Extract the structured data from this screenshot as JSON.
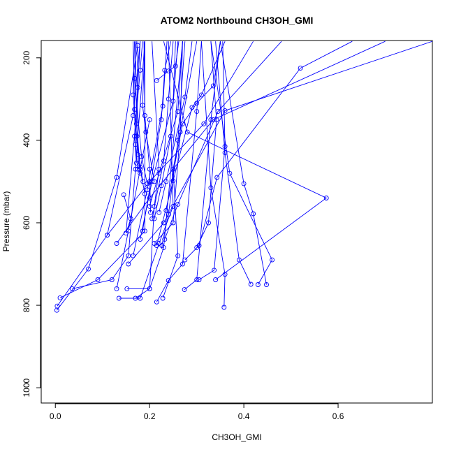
{
  "chart_data": {
    "type": "line",
    "title": "ATOM2 Northbound CH3OH_GMI",
    "xlabel": "CH3OH_GMI",
    "ylabel": "Pressure (mbar)",
    "xlim": [
      -0.03,
      0.8
    ],
    "ylim": [
      1037,
      158
    ],
    "y_reversed": true,
    "xticks": [
      "0.0",
      "0.2",
      "0.4",
      "0.6"
    ],
    "xtick_values": [
      0.0,
      0.2,
      0.4,
      0.6
    ],
    "yticks": [
      "200",
      "400",
      "600",
      "800",
      "1000"
    ],
    "ytick_values": [
      200,
      400,
      600,
      800,
      1000
    ],
    "grid": false,
    "legend": "none",
    "series_color": "#0000ff",
    "marker": "open-circle",
    "series": [
      {
        "x": [
          0.004,
          0.11,
          0.165,
          0.18
        ],
        "y": [
          802,
          630,
          340,
          160
        ]
      },
      {
        "x": [
          0.003,
          0.07,
          0.13,
          0.175
        ],
        "y": [
          812,
          712,
          490,
          170
        ]
      },
      {
        "x": [
          0.01,
          0.09,
          0.19,
          0.19
        ],
        "y": [
          782,
          738,
          620,
          160
        ]
      },
      {
        "x": [
          0.036,
          0.12,
          0.155,
          0.17,
          0.19
        ],
        "y": [
          760,
          738,
          680,
          470,
          160
        ]
      },
      {
        "x": [
          0.145,
          0.16,
          0.15,
          0.18,
          0.185
        ],
        "y": [
          532,
          590,
          625,
          230,
          160
        ]
      },
      {
        "x": [
          0.13,
          0.155,
          0.2
        ],
        "y": [
          760,
          620,
          350
        ]
      },
      {
        "x": [
          0.135,
          0.18,
          0.22,
          0.25,
          0.24
        ],
        "y": [
          783,
          783,
          650,
          560,
          160
        ]
      },
      {
        "x": [
          0.17,
          0.2,
          0.21,
          0.22,
          0.205
        ],
        "y": [
          783,
          760,
          560,
          470,
          160
        ]
      },
      {
        "x": [
          0.152,
          0.2,
          0.23,
          0.27
        ],
        "y": [
          760,
          760,
          660,
          160
        ]
      },
      {
        "x": [
          0.215,
          0.24,
          0.27,
          0.3,
          0.31
        ],
        "y": [
          792,
          740,
          700,
          330,
          160
        ]
      },
      {
        "x": [
          0.228,
          0.26,
          0.25,
          0.3
        ],
        "y": [
          783,
          680,
          470,
          160
        ]
      },
      {
        "x": [
          0.274,
          0.3,
          0.33,
          0.35
        ],
        "y": [
          762,
          738,
          350,
          160
        ]
      },
      {
        "x": [
          0.358,
          0.36,
          0.33,
          0.31
        ],
        "y": [
          805,
          725,
          515,
          160
        ]
      },
      {
        "x": [
          0.305,
          0.337,
          0.36,
          0.355
        ],
        "y": [
          738,
          715,
          415,
          160
        ]
      },
      {
        "x": [
          0.415,
          0.39,
          0.36,
          0.34
        ],
        "y": [
          749,
          690,
          430,
          160
        ]
      },
      {
        "x": [
          0.448,
          0.42,
          0.4,
          0.35
        ],
        "y": [
          750,
          578,
          505,
          160
        ]
      },
      {
        "x": [
          0.43,
          0.46,
          0.37,
          0.33
        ],
        "y": [
          750,
          690,
          480,
          160
        ]
      },
      {
        "x": [
          0.34,
          0.575,
          0.28,
          0.23
        ],
        "y": [
          738,
          540,
          380,
          160
        ]
      },
      {
        "x": [
          0.3,
          0.325,
          0.342,
          0.33
        ],
        "y": [
          660,
          600,
          350,
          160
        ]
      },
      {
        "x": [
          0.275,
          0.305,
          0.343,
          0.52,
          0.63
        ],
        "y": [
          690,
          655,
          490,
          225,
          160
        ]
      },
      {
        "x": [
          0.232,
          0.26,
          0.345,
          0.48
        ],
        "y": [
          640,
          555,
          330,
          160
        ]
      },
      {
        "x": [
          0.155,
          0.23,
          0.36,
          0.8
        ],
        "y": [
          700,
          600,
          328,
          160
        ]
      },
      {
        "x": [
          0.13,
          0.2,
          0.335,
          0.7
        ],
        "y": [
          650,
          540,
          350,
          160
        ]
      },
      {
        "x": [
          0.11,
          0.2,
          0.315,
          0.42
        ],
        "y": [
          630,
          500,
          360,
          160
        ]
      },
      {
        "x": [
          0.215,
          0.25,
          0.29,
          0.31,
          0.36
        ],
        "y": [
          655,
          498,
          320,
          290,
          160
        ]
      },
      {
        "x": [
          0.235,
          0.27,
          0.3,
          0.335,
          0.35
        ],
        "y": [
          570,
          360,
          310,
          268,
          160
        ]
      },
      {
        "x": [
          0.2,
          0.22,
          0.26,
          0.27
        ],
        "y": [
          560,
          480,
          330,
          160
        ]
      },
      {
        "x": [
          0.22,
          0.235,
          0.275,
          0.29
        ],
        "y": [
          575,
          500,
          295,
          160
        ]
      },
      {
        "x": [
          0.21,
          0.225,
          0.245,
          0.26
        ],
        "y": [
          590,
          510,
          390,
          160
        ]
      },
      {
        "x": [
          0.205,
          0.23,
          0.24,
          0.25
        ],
        "y": [
          590,
          450,
          300,
          160
        ]
      },
      {
        "x": [
          0.185,
          0.225,
          0.232,
          0.245
        ],
        "y": [
          620,
          350,
          230,
          160
        ]
      },
      {
        "x": [
          0.165,
          0.195,
          0.228,
          0.237
        ],
        "y": [
          680,
          520,
          317,
          160
        ]
      },
      {
        "x": [
          0.18,
          0.205,
          0.25,
          0.255
        ],
        "y": [
          640,
          500,
          305,
          160
        ]
      },
      {
        "x": [
          0.21,
          0.25,
          0.265,
          0.27
        ],
        "y": [
          650,
          600,
          380,
          160
        ]
      },
      {
        "x": [
          0.226,
          0.24,
          0.26,
          0.275
        ],
        "y": [
          655,
          580,
          400,
          160
        ]
      },
      {
        "x": [
          0.202,
          0.2,
          0.19,
          0.188
        ],
        "y": [
          575,
          470,
          340,
          160
        ]
      },
      {
        "x": [
          0.19,
          0.18,
          0.173,
          0.175
        ],
        "y": [
          530,
          470,
          390,
          160
        ]
      },
      {
        "x": [
          0.195,
          0.183,
          0.168,
          0.172
        ],
        "y": [
          505,
          440,
          250,
          160
        ]
      },
      {
        "x": [
          0.18,
          0.175,
          0.165,
          0.168
        ],
        "y": [
          480,
          435,
          290,
          160
        ]
      },
      {
        "x": [
          0.186,
          0.18,
          0.172,
          0.17
        ],
        "y": [
          500,
          465,
          360,
          160
        ]
      },
      {
        "x": [
          0.175,
          0.17,
          0.168,
          0.165
        ],
        "y": [
          470,
          410,
          325,
          160
        ]
      },
      {
        "x": [
          0.172,
          0.168,
          0.175,
          0.18
        ],
        "y": [
          455,
          390,
          272,
          160
        ]
      },
      {
        "x": [
          0.21,
          0.192,
          0.185,
          0.19
        ],
        "y": [
          500,
          380,
          315,
          160
        ]
      },
      {
        "x": [
          0.215,
          0.24,
          0.255,
          0.262
        ],
        "y": [
          255,
          232,
          220,
          160
        ]
      }
    ]
  }
}
